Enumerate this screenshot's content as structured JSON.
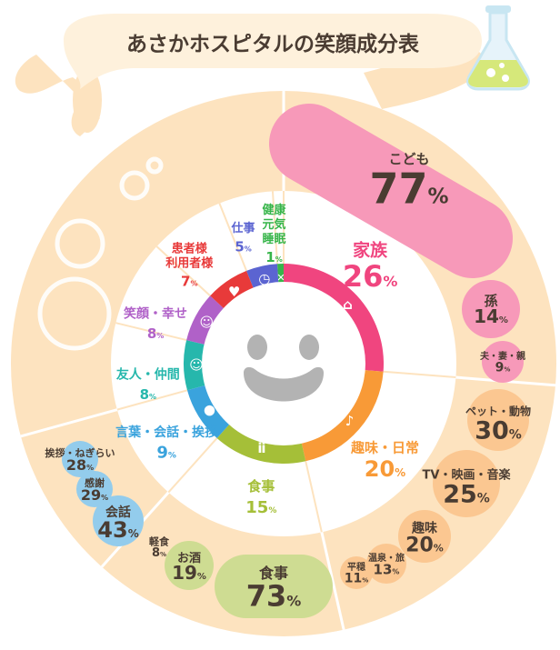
{
  "title": "あさかホスピタルの笑顔成分表",
  "colors": {
    "cream": "#fde3bf",
    "divider": "#ffffff",
    "title_bubble": "#fef1dc",
    "family": "#f0457f",
    "hobby": "#f89a37",
    "food": "#a5bf38",
    "words": "#3aa3dd",
    "friends": "#26b7ac",
    "smile": "#b061c8",
    "patients": "#e83a3a",
    "work": "#5b64d1",
    "health": "#37b54a",
    "face": "#b3b3b3",
    "text_dark": "#4a3c32"
  },
  "chart_data": {
    "type": "pie",
    "title": "あさかホスピタルの笑顔成分表",
    "categories": [
      {
        "key": "family",
        "label": "家族",
        "value": 26,
        "icon": "house-icon",
        "children": [
          {
            "label": "こども",
            "value": 77
          },
          {
            "label": "孫",
            "value": 14
          },
          {
            "label": "夫・妻・親",
            "value": 9
          }
        ]
      },
      {
        "key": "hobby",
        "label": "趣味・日常",
        "value": 20,
        "icon": "music-note-icon",
        "children": [
          {
            "label": "ペット・動物",
            "value": 30
          },
          {
            "label": "TV・映画・音楽",
            "value": 25
          },
          {
            "label": "趣味",
            "value": 20
          },
          {
            "label": "温泉・旅",
            "value": 13
          },
          {
            "label": "平穏",
            "value": 11
          }
        ]
      },
      {
        "key": "food",
        "label": "食事",
        "value": 15,
        "icon": "fork-knife-icon",
        "children": [
          {
            "label": "食事",
            "value": 73
          },
          {
            "label": "お酒",
            "value": 19
          },
          {
            "label": "軽食",
            "value": 8
          }
        ]
      },
      {
        "key": "words",
        "label": "言葉・会話・挨拶",
        "value": 9,
        "icon": "speech-bubble-icon",
        "children": [
          {
            "label": "会話",
            "value": 43
          },
          {
            "label": "感謝",
            "value": 29
          },
          {
            "label": "挨拶・ねぎらい",
            "value": 28
          }
        ]
      },
      {
        "key": "friends",
        "label": "友人・仲間",
        "value": 8,
        "icon": "people-icon",
        "children": []
      },
      {
        "key": "smile",
        "label": "笑顔・幸せ",
        "value": 8,
        "icon": "smiley-icon",
        "children": []
      },
      {
        "key": "patients",
        "label": "患者様\n利用者様",
        "value": 7,
        "icon": "heart-icon",
        "children": []
      },
      {
        "key": "work",
        "label": "仕事",
        "value": 5,
        "icon": "clock-icon",
        "children": []
      },
      {
        "key": "health",
        "label": "健康\n元気\n睡眠",
        "value": 1,
        "icon": "running-person-icon",
        "children": []
      }
    ],
    "value_suffix": "%"
  }
}
